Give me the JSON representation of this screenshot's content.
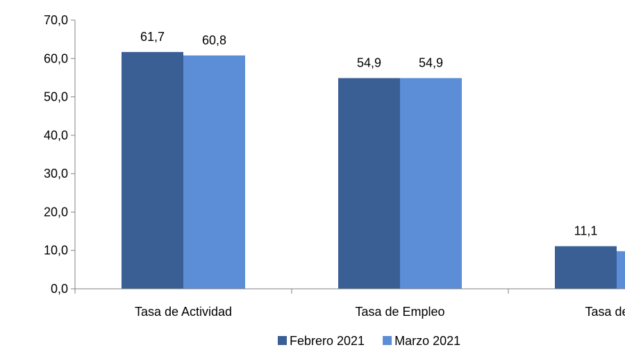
{
  "chart_data": {
    "type": "bar",
    "categories": [
      "Tasa de Actividad",
      "Tasa de Empleo",
      "Tasa de De"
    ],
    "series": [
      {
        "name": "Febrero 2021",
        "color": "#3A5F94",
        "values": [
          61.7,
          54.9,
          11.1
        ],
        "labels": [
          "61,7",
          "54,9",
          "11,1"
        ]
      },
      {
        "name": "Marzo 2021",
        "color": "#5B8ED6",
        "values": [
          60.8,
          54.9,
          9.8
        ],
        "labels": [
          "60,8",
          "54,9",
          ""
        ]
      }
    ],
    "ylim": [
      0,
      70
    ],
    "yticks": [
      "0,0",
      "10,0",
      "20,0",
      "30,0",
      "40,0",
      "50,0",
      "60,0",
      "70,0"
    ],
    "grid": false,
    "legend_position": "bottom"
  }
}
